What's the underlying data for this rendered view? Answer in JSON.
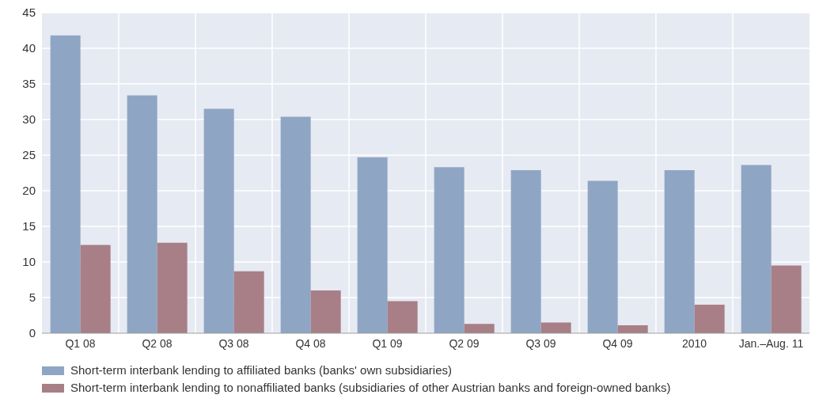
{
  "chart_data": {
    "type": "bar",
    "categories": [
      "Q1 08",
      "Q2 08",
      "Q3 08",
      "Q4 08",
      "Q1 09",
      "Q2 09",
      "Q3 09",
      "Q4 09",
      "2010",
      "Jan.–Aug. 11"
    ],
    "series": [
      {
        "name": "Short-term interbank lending to affiliated banks (banks' own subsidiaries)",
        "color": "#8fa5c4",
        "values": [
          41.8,
          33.4,
          31.5,
          30.4,
          24.7,
          23.3,
          22.9,
          21.4,
          22.9,
          23.6
        ]
      },
      {
        "name": "Short-term interbank lending to nonaffiliated banks (subsidiaries of other Austrian banks and foreign-owned banks)",
        "color": "#a87f86",
        "values": [
          12.4,
          12.7,
          8.7,
          6.0,
          4.5,
          1.3,
          1.5,
          1.1,
          4.0,
          9.5
        ]
      }
    ],
    "ylim": [
      0,
      45
    ],
    "yticks": [
      0,
      5,
      10,
      15,
      20,
      25,
      30,
      35,
      40,
      45
    ],
    "grid": true,
    "legend": "bottom"
  }
}
